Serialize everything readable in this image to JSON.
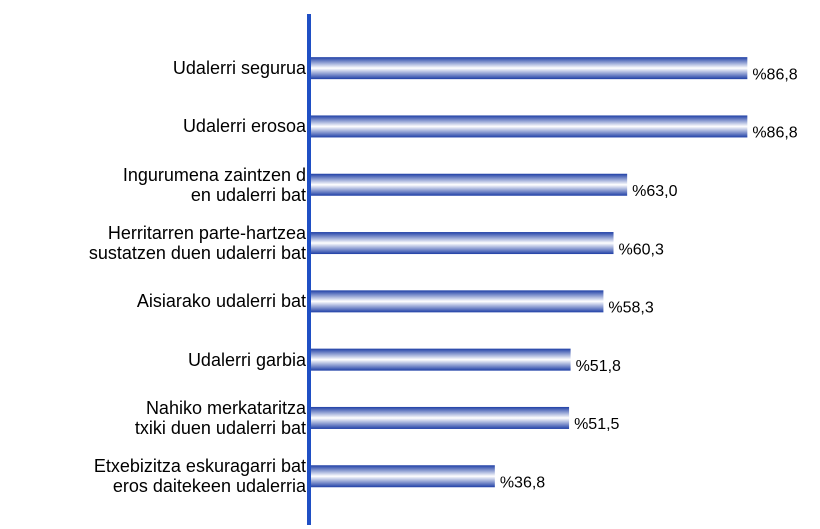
{
  "chart_data": {
    "type": "barh",
    "categories": [
      "Udalerri segurua",
      "Udalerri erosoa",
      "Ingurumena zaintzen d\nen udalerri bat",
      "Herritarren parte-hartzea\nsustatzen duen udalerri bat",
      "Aisiarako udalerri bat",
      "Udalerri garbia",
      "Nahiko merkataritza\ntxiki duen udalerri bat",
      "Etxebizitza eskuragarri bat\neros daitekeen udalerria"
    ],
    "values": [
      86.8,
      86.8,
      63.0,
      60.3,
      58.3,
      51.8,
      51.5,
      36.8
    ],
    "value_labels": [
      "%86,8",
      "%86,8",
      "%63,0",
      "%60,3",
      "%58,3",
      "%51,8",
      "%51,5",
      "%36,8"
    ],
    "color": "#1f3fa6",
    "xlim": [
      0,
      100
    ]
  }
}
